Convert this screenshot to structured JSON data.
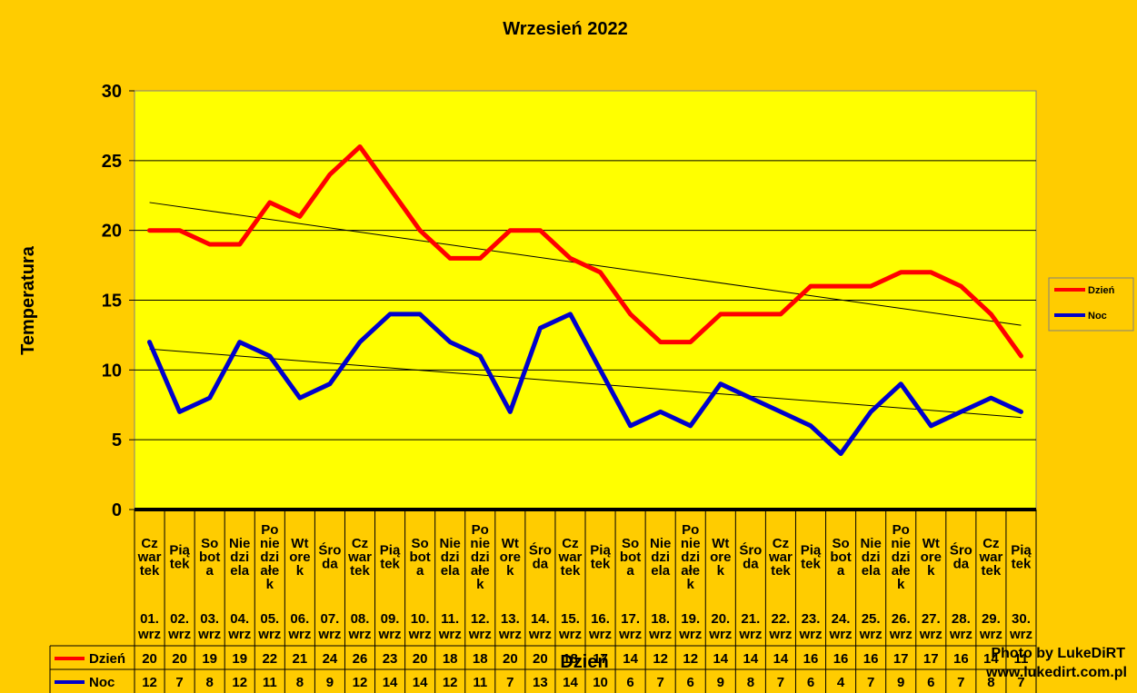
{
  "chart_data": {
    "type": "line",
    "title": "Wrzesień 2022",
    "ylabel": "Temperatura",
    "xlabel": "Dzień",
    "ylim": [
      0,
      30
    ],
    "yticks": [
      0,
      5,
      10,
      15,
      20,
      25,
      30
    ],
    "grid": true,
    "legend": "right",
    "categories": [
      {
        "day": "Cz|war|tek",
        "date": "01.|wrz"
      },
      {
        "day": "Pią|tek",
        "date": "02.|wrz"
      },
      {
        "day": "So|bot|a",
        "date": "03.|wrz"
      },
      {
        "day": "Nie|dzi|ela",
        "date": "04.|wrz"
      },
      {
        "day": "Po|nie|dzi|ałe|k",
        "date": "05.|wrz"
      },
      {
        "day": "Wt|ore|k",
        "date": "06.|wrz"
      },
      {
        "day": "Śro|da",
        "date": "07.|wrz"
      },
      {
        "day": "Cz|war|tek",
        "date": "08.|wrz"
      },
      {
        "day": "Pią|tek",
        "date": "09.|wrz"
      },
      {
        "day": "So|bot|a",
        "date": "10.|wrz"
      },
      {
        "day": "Nie|dzi|ela",
        "date": "11.|wrz"
      },
      {
        "day": "Po|nie|dzi|ałe|k",
        "date": "12.|wrz"
      },
      {
        "day": "Wt|ore|k",
        "date": "13.|wrz"
      },
      {
        "day": "Śro|da",
        "date": "14.|wrz"
      },
      {
        "day": "Cz|war|tek",
        "date": "15.|wrz"
      },
      {
        "day": "Pią|tek",
        "date": "16.|wrz"
      },
      {
        "day": "So|bot|a",
        "date": "17.|wrz"
      },
      {
        "day": "Nie|dzi|ela",
        "date": "18.|wrz"
      },
      {
        "day": "Po|nie|dzi|ałe|k",
        "date": "19.|wrz"
      },
      {
        "day": "Wt|ore|k",
        "date": "20.|wrz"
      },
      {
        "day": "Śro|da",
        "date": "21.|wrz"
      },
      {
        "day": "Cz|war|tek",
        "date": "22.|wrz"
      },
      {
        "day": "Pią|tek",
        "date": "23.|wrz"
      },
      {
        "day": "So|bot|a",
        "date": "24.|wrz"
      },
      {
        "day": "Nie|dzi|ela",
        "date": "25.|wrz"
      },
      {
        "day": "Po|nie|dzi|ałe|k",
        "date": "26.|wrz"
      },
      {
        "day": "Wt|ore|k",
        "date": "27.|wrz"
      },
      {
        "day": "Śro|da",
        "date": "28.|wrz"
      },
      {
        "day": "Cz|war|tek",
        "date": "29.|wrz"
      },
      {
        "day": "Pią|tek",
        "date": "30.|wrz"
      }
    ],
    "series": [
      {
        "name": "Dzień",
        "color": "#FF0000",
        "values": [
          20,
          20,
          19,
          19,
          22,
          21,
          24,
          26,
          23,
          20,
          18,
          18,
          20,
          20,
          18,
          17,
          14,
          12,
          12,
          14,
          14,
          14,
          16,
          16,
          16,
          17,
          17,
          16,
          14,
          11
        ],
        "trendline": [
          22,
          13.2
        ]
      },
      {
        "name": "Noc",
        "color": "#0000CC",
        "values": [
          12,
          7,
          8,
          12,
          11,
          8,
          9,
          12,
          14,
          14,
          12,
          11,
          7,
          13,
          14,
          10,
          6,
          7,
          6,
          9,
          8,
          7,
          6,
          4,
          7,
          9,
          6,
          7,
          8,
          7
        ],
        "trendline": [
          11.5,
          6.6
        ]
      }
    ],
    "colors": {
      "background": "#FFCC00",
      "plot_area": "#FFFF00"
    }
  },
  "watermark": {
    "line1": "Photo by LukeDiRT",
    "line2": "www.lukedirt.com.pl"
  }
}
